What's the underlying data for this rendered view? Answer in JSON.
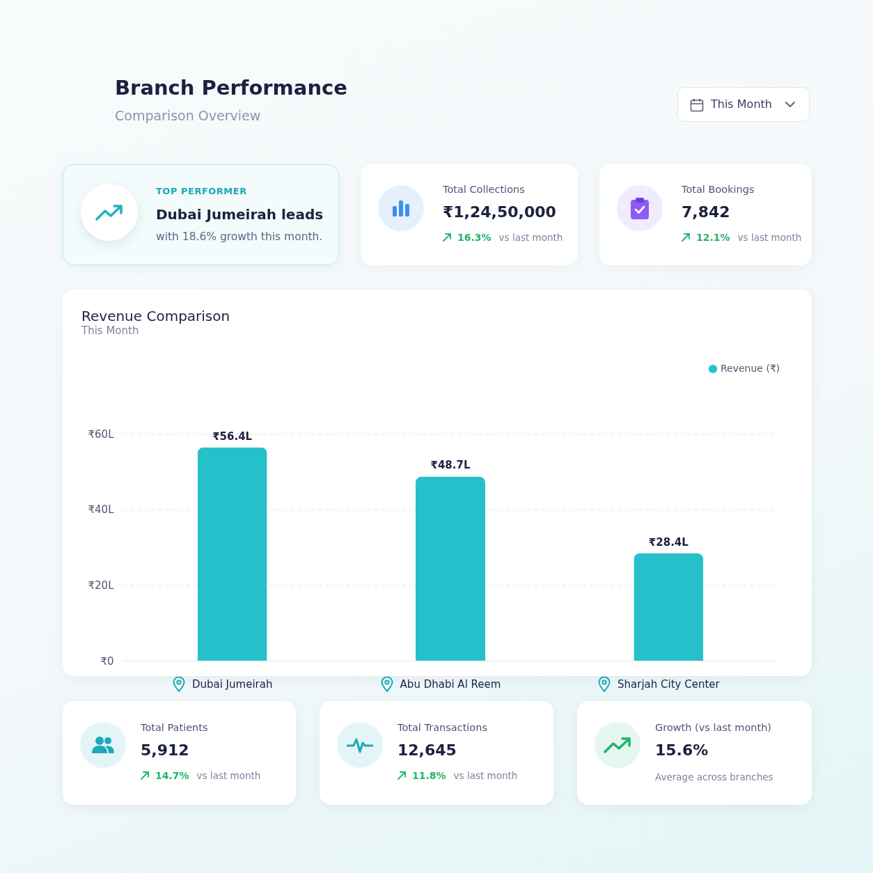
{
  "chart_data": [
    {
      "type": "other",
      "title": "Branch Performance",
      "subtitle": "Comparison Overview",
      "annotations": [
        "This Month"
      ]
    },
    {
      "type": "other",
      "title": "TOP PERFORMER",
      "annotations": [
        "Dubai Jumeirah leads",
        "with 18.6% growth this month."
      ]
    },
    {
      "type": "other",
      "title": "Total Collections",
      "annotations": [
        "₹1,24,50,000",
        "16.3%",
        "vs last month"
      ]
    },
    {
      "type": "other",
      "title": "Total Bookings",
      "annotations": [
        "7,842",
        "12.1%",
        "vs last month"
      ]
    },
    {
      "type": "bar",
      "title": "Revenue Comparison",
      "subtitle": "This Month",
      "categories": [
        "Dubai Jumeirah",
        "Abu Dhabi Al Reem",
        "Sharjah City Center"
      ],
      "series": [
        {
          "name": "Revenue (₹)",
          "color": "#26c0cb",
          "values": [
            56.4,
            48.7,
            28.4
          ]
        }
      ],
      "value_labels": [
        "₹56.4L",
        "₹48.7L",
        "₹28.4L"
      ],
      "ylim": [
        0,
        60
      ],
      "yticks": [
        {
          "value": 0,
          "label": "₹0"
        },
        {
          "value": 20,
          "label": "₹20L"
        },
        {
          "value": 40,
          "label": "₹40L"
        },
        {
          "value": 60,
          "label": "₹60L"
        }
      ],
      "grid": "y",
      "legend": "top right"
    },
    {
      "type": "other",
      "title": "Total Patients",
      "annotations": [
        "5,912",
        "14.7%",
        "vs last month"
      ]
    },
    {
      "type": "other",
      "title": "Total Transactions",
      "annotations": [
        "12,645",
        "11.8%",
        "vs last month"
      ]
    },
    {
      "type": "other",
      "title": "Growth (vs last month)",
      "annotations": [
        "15.6%",
        "Average across branches"
      ]
    }
  ]
}
